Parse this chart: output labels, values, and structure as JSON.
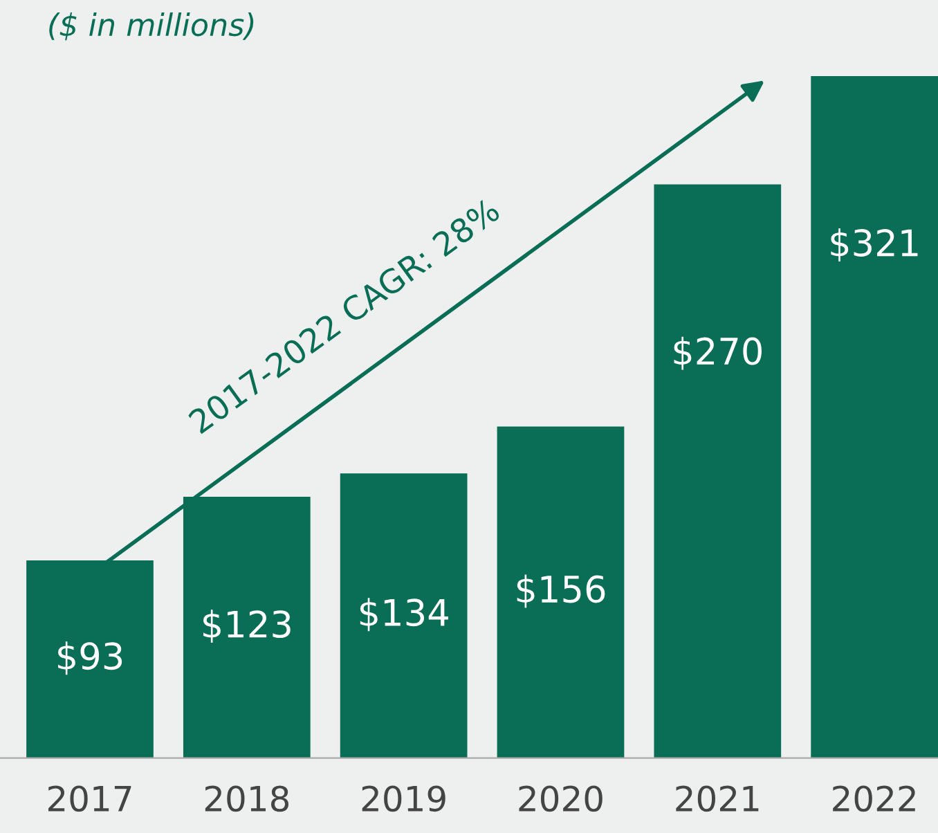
{
  "chart_data": {
    "type": "bar",
    "title": "($ in millions)",
    "categories": [
      "2017",
      "2018",
      "2019",
      "2020",
      "2021",
      "2022"
    ],
    "values": [
      93,
      123,
      134,
      156,
      270,
      321
    ],
    "value_labels": [
      "$93",
      "$123",
      "$134",
      "$156",
      "$270",
      "$321"
    ],
    "color": "#0a6e56",
    "annotations": [
      "2017-2022 CAGR: 28%"
    ],
    "grid": false,
    "legend": false
  }
}
